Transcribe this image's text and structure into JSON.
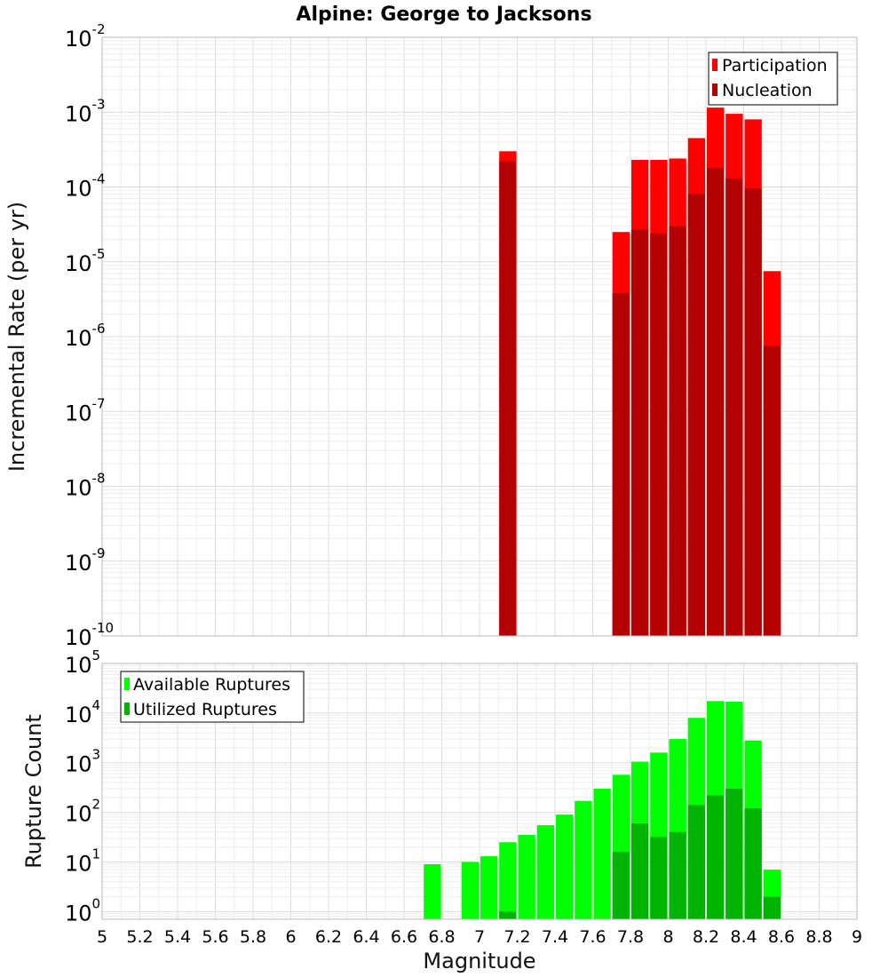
{
  "figure_title": "Alpine: George to Jacksons",
  "colors": {
    "participation": "#ff0000",
    "nucleation": "#b30000",
    "available": "#00ff00",
    "utilized": "#00b300"
  },
  "chart_data": [
    {
      "type": "bar",
      "title": "Alpine: George to Jacksons",
      "ylabel": "Incremental Rate (per yr)",
      "xlabel": "",
      "xlim": [
        5,
        9
      ],
      "ylim": [
        1e-10,
        0.01
      ],
      "yscale": "log",
      "y_tick_exponents": [
        "-10",
        "-9",
        "-8",
        "-7",
        "-6",
        "-5",
        "-4",
        "-3",
        "-2"
      ],
      "y_tick_base": "10",
      "legend_position": "top-right",
      "legend": [
        "Participation",
        "Nucleation"
      ],
      "x": [
        7.15,
        7.75,
        7.85,
        7.95,
        8.05,
        8.15,
        8.25,
        8.35,
        8.45,
        8.55
      ],
      "series": [
        {
          "name": "Participation",
          "color": "#ff0000",
          "values": [
            0.0003,
            2.5e-05,
            0.00023,
            0.00023,
            0.00024,
            0.00045,
            0.00115,
            0.00095,
            0.0008,
            7.5e-06
          ]
        },
        {
          "name": "Nucleation",
          "color": "#b30000",
          "values": [
            0.00022,
            3.8e-06,
            2.7e-05,
            2.4e-05,
            3e-05,
            8e-05,
            0.00018,
            0.00013,
            9.5e-05,
            7.5e-07
          ]
        }
      ]
    },
    {
      "type": "bar",
      "title": "",
      "ylabel": "Rupture Count",
      "xlabel": "Magnitude",
      "xlim": [
        5,
        9
      ],
      "ylim": [
        0.7,
        100000.0
      ],
      "yscale": "log",
      "y_tick_exponents": [
        "0",
        "1",
        "2",
        "3",
        "4",
        "5"
      ],
      "y_tick_base": "10",
      "x_ticks": [
        "5",
        "5.2",
        "5.4",
        "5.6",
        "5.8",
        "6",
        "6.2",
        "6.4",
        "6.6",
        "6.8",
        "7",
        "7.2",
        "7.4",
        "7.6",
        "7.8",
        "8",
        "8.2",
        "8.4",
        "8.6",
        "8.8",
        "9"
      ],
      "legend_position": "top-left",
      "legend": [
        "Available Ruptures",
        "Utilized Ruptures"
      ],
      "x": [
        6.75,
        6.95,
        7.05,
        7.15,
        7.25,
        7.35,
        7.45,
        7.55,
        7.65,
        7.75,
        7.85,
        7.95,
        8.05,
        8.15,
        8.25,
        8.35,
        8.45,
        8.55
      ],
      "series": [
        {
          "name": "Available Ruptures",
          "color": "#00ff00",
          "values": [
            9,
            10,
            13,
            25,
            35,
            55,
            90,
            170,
            300,
            570,
            1050,
            1600,
            3000,
            8000,
            17500,
            17000,
            2800,
            7
          ]
        },
        {
          "name": "Utilized Ruptures",
          "color": "#00b300",
          "values": [
            null,
            null,
            null,
            1,
            null,
            null,
            null,
            null,
            null,
            16,
            60,
            32,
            40,
            140,
            220,
            300,
            120,
            2
          ]
        }
      ]
    }
  ]
}
